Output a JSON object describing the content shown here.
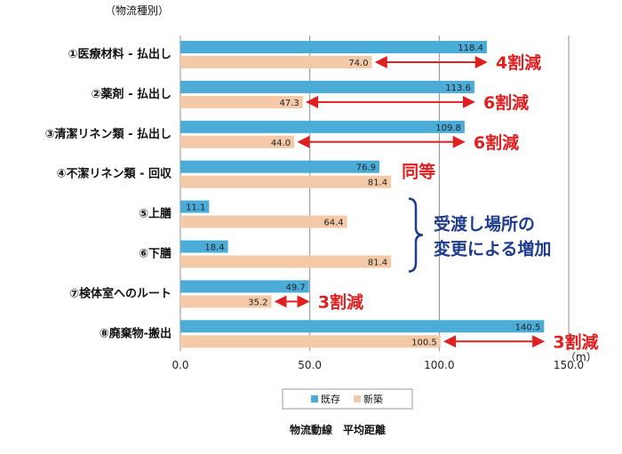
{
  "chart_data": {
    "type": "bar",
    "orientation": "horizontal",
    "category_axis_label": "（物流種別）",
    "categories": [
      "①医療材料 - 払出し",
      "②薬剤 - 払出し",
      "③清潔リネン類 - 払出し",
      "④不潔リネン類 - 回収",
      "⑤上膳",
      "⑥下膳",
      "⑦検体室へのルート",
      "⑧廃棄物-搬出"
    ],
    "series": [
      {
        "name": "既存",
        "color": "#4bacd8",
        "values": [
          118.4,
          113.6,
          109.8,
          76.9,
          11.1,
          18.4,
          49.7,
          140.5
        ]
      },
      {
        "name": "新築",
        "color": "#f4c9a8",
        "values": [
          74.0,
          47.3,
          44.0,
          81.4,
          64.4,
          81.4,
          35.2,
          100.5
        ]
      }
    ],
    "value_labels": [
      [
        "118.4",
        "74.0"
      ],
      [
        "113.6",
        "47.3"
      ],
      [
        "109.8",
        "44.0"
      ],
      [
        "76.9",
        "81.4"
      ],
      [
        "11.1",
        "64.4"
      ],
      [
        "18.4",
        "81.4"
      ],
      [
        "49.7",
        "35.2"
      ],
      [
        "140.5",
        "100.5"
      ]
    ],
    "xlim": [
      0,
      150
    ],
    "x_ticks": [
      "0.0",
      "50.0",
      "100.0",
      "150.0"
    ],
    "unit_label": "（m）",
    "title": "物流動線　平均距離",
    "gridlines": true,
    "legend_position": "bottom",
    "annotations": [
      {
        "category_index": 0,
        "text": "4割減",
        "arrow": true
      },
      {
        "category_index": 1,
        "text": "6割減",
        "arrow": true
      },
      {
        "category_index": 2,
        "text": "6割減",
        "arrow": true
      },
      {
        "category_index": 3,
        "text": "同等",
        "arrow": false
      },
      {
        "category_index": 6,
        "text": "3割減",
        "arrow": true
      },
      {
        "category_index": 7,
        "text": "3割減",
        "arrow": true
      }
    ],
    "brace_annotation": {
      "category_indices": [
        4,
        5
      ],
      "lines": [
        "受渡し場所の",
        "変更による増加"
      ]
    }
  }
}
